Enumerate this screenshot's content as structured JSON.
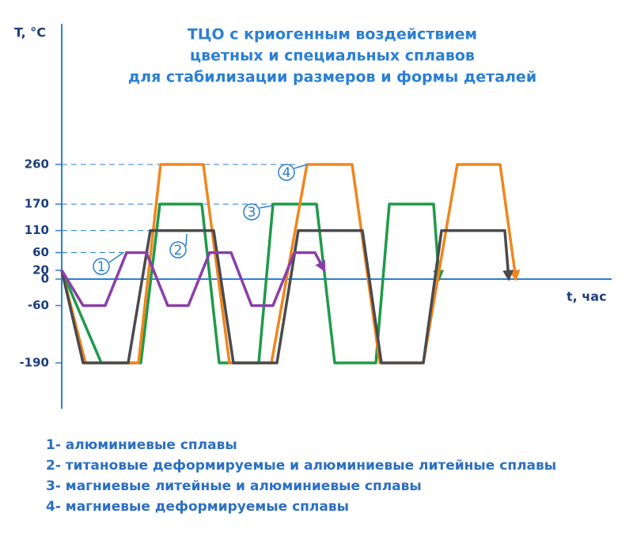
{
  "chart_data": {
    "type": "line",
    "title": [
      "ТЦО с криогенным воздействием",
      "цветных и специальных сплавов",
      "для стабилизации размеров и формы деталей"
    ],
    "y_label": "T, °C",
    "x_label": "t, час",
    "xlim": [
      0,
      69.5
    ],
    "ylim": [
      -294,
      579
    ],
    "yticks": [
      260,
      170,
      110,
      60,
      20,
      0,
      -60,
      -190
    ],
    "series": [
      {
        "name": "1- алюминиевые сплавы",
        "label": "1",
        "color": "#8a3fa8",
        "x": [
          0,
          2.7,
          5.5,
          8.2,
          10.7,
          13.4,
          16,
          18.7,
          21.4,
          24,
          26.7,
          29.4,
          32,
          33.2
        ],
        "values": [
          20,
          -60,
          -60,
          60,
          60,
          -60,
          -60,
          60,
          60,
          -60,
          -60,
          60,
          60,
          20
        ]
      },
      {
        "name": "2- титановые деформируемые и алюминиевые литейные сплавы",
        "label": "2",
        "color": "#4a4a4f",
        "x": [
          0,
          2.7,
          8.4,
          11.2,
          19.2,
          21.7,
          27.2,
          29.9,
          38,
          40.4,
          45.7,
          48,
          56,
          56.5
        ],
        "values": [
          20,
          -190,
          -190,
          110,
          110,
          -190,
          -190,
          110,
          110,
          -190,
          -190,
          110,
          110,
          0
        ]
      },
      {
        "name": "3- магниевые литейные и алюминиевые сплавы",
        "label": "3",
        "color": "#1f9a4a",
        "x": [
          0,
          5,
          10,
          12.4,
          17.7,
          19.9,
          24.9,
          26.7,
          32.2,
          34.5,
          39.7,
          41.4,
          47,
          47.7
        ],
        "values": [
          20,
          -190,
          -190,
          170,
          170,
          -190,
          -190,
          170,
          170,
          -190,
          -190,
          170,
          170,
          0
        ]
      },
      {
        "name": "4- магниевые деформируемые сплавы",
        "label": "4",
        "color": "#f0861c",
        "x": [
          0,
          3,
          9.7,
          12.5,
          17.9,
          21.2,
          26.5,
          31,
          36.7,
          40.2,
          45.7,
          50,
          55.4,
          57.4
        ],
        "values": [
          20,
          -190,
          -190,
          260,
          260,
          -190,
          -190,
          260,
          260,
          -190,
          -190,
          260,
          260,
          0
        ]
      }
    ]
  }
}
